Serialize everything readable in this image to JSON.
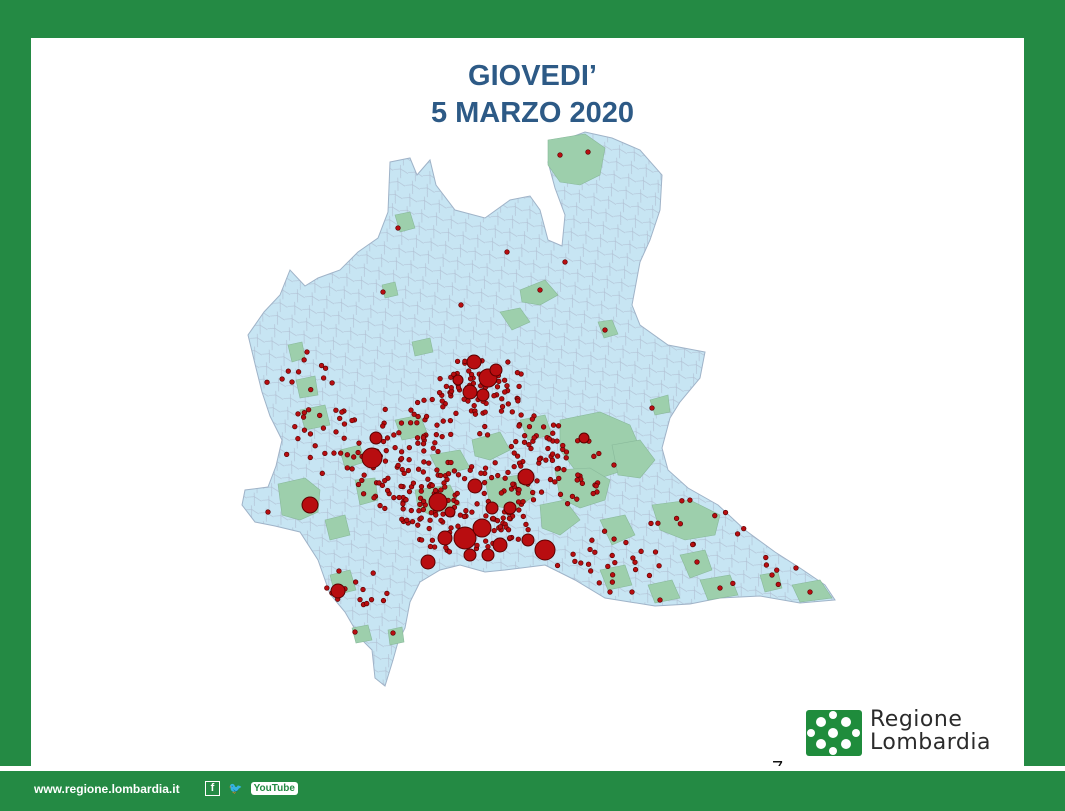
{
  "title": {
    "line1": "GIOVEDI’",
    "line2": "5 MARZO 2020"
  },
  "logo": {
    "line1": "Regione",
    "line2": "Lombardia",
    "icon": "regione-lombardia-rosa-camuna-icon"
  },
  "page_number": "7",
  "footer": {
    "url": "www.regione.lombardia.it",
    "social": {
      "facebook": "f",
      "twitter_icon": "twitter-bird-icon",
      "youtube": "YouTube"
    }
  },
  "colors": {
    "frame_green": "#248a44",
    "base_region": "#c7e5f3",
    "affected_region": "#9dcfac",
    "case_marker": "#b80d10",
    "title": "#2d5a86"
  }
}
